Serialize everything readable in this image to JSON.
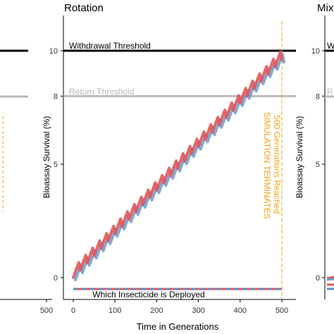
{
  "chart_data": [
    {
      "panel": "left (cropped)",
      "type": "line",
      "title": "",
      "xlabel": "",
      "ylabel": "",
      "xlim": [
        0,
        500
      ],
      "ylim": [
        -1,
        11
      ],
      "x_ticks_visible": [
        500
      ],
      "reference_lines": [
        {
          "y": 10,
          "color": "#000000"
        },
        {
          "y": 8,
          "color": "#bbbbbb"
        }
      ],
      "grid": false
    },
    {
      "panel": "middle",
      "type": "line",
      "title": "Rotation",
      "xlabel": "Time in Generations",
      "ylabel": "Bioassay Survival (%)",
      "xlim": [
        0,
        500
      ],
      "ylim": [
        -1,
        11
      ],
      "x_ticks": [
        0,
        100,
        200,
        300,
        400,
        500
      ],
      "y_ticks": [
        0,
        5,
        8,
        10
      ],
      "grid": false,
      "reference_lines": [
        {
          "label": "Withdrawal Threshold",
          "y": 10,
          "color": "#000000"
        },
        {
          "label": "Return Threshold",
          "y": 8,
          "color": "#bbbbbb"
        }
      ],
      "vertical_line": {
        "x": 500,
        "color": "#f2a413",
        "label": "500 Generations Reached\nSIMULATION TERMINATES"
      },
      "deployment_bar": {
        "label": "Which Insecticide is Deployed",
        "y": -0.5,
        "colors": [
          "#e15759",
          "#5b8fc9"
        ]
      },
      "series": [
        {
          "color": "#e15759",
          "x": [
            0,
            500
          ],
          "y": [
            0,
            9.6
          ],
          "style": "sawtooth"
        },
        {
          "color": "#6a9bd1",
          "x": [
            0,
            500
          ],
          "y": [
            -0.1,
            9.5
          ],
          "style": "sawtooth"
        }
      ]
    },
    {
      "panel": "right (cropped)",
      "type": "line",
      "title": "Mix",
      "xlabel": "",
      "ylabel": "Bioassay Survival (%)",
      "y_ticks": [
        0,
        5,
        8,
        10
      ],
      "ylim": [
        -1,
        11
      ],
      "reference_lines": [
        {
          "label": "Withdrawal Threshold",
          "y": 10,
          "color": "#000000"
        },
        {
          "label": "Return Threshold",
          "y": 8,
          "color": "#bbbbbb"
        }
      ],
      "grid": false
    }
  ]
}
